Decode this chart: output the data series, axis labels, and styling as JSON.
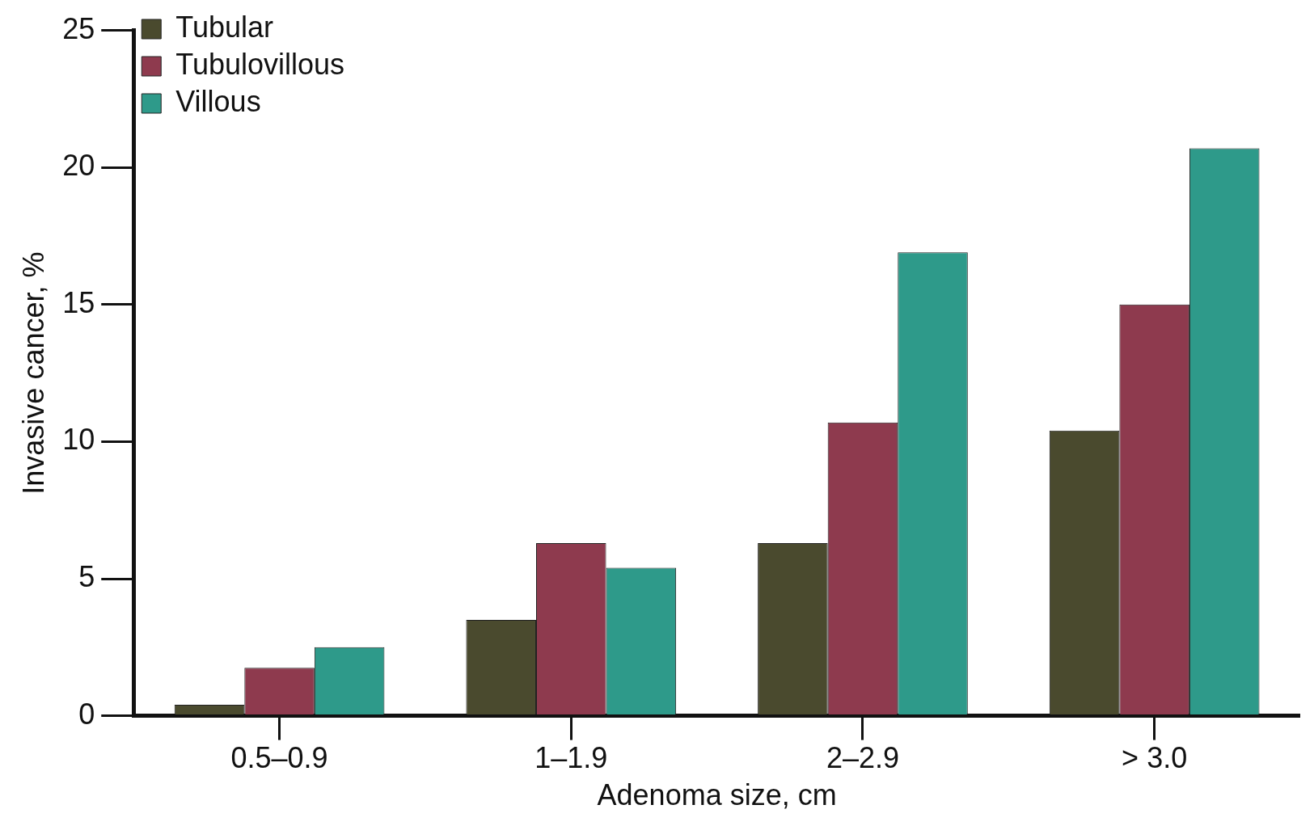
{
  "chart_data": {
    "type": "bar",
    "xlabel": "Adenoma size, cm",
    "ylabel": "Invasive cancer, %",
    "categories": [
      "0.5–0.9",
      "1–1.9",
      "2–2.9",
      "> 3.0"
    ],
    "series": [
      {
        "name": "Tubular",
        "color": "#4a4a2e",
        "values": [
          0.4,
          3.5,
          6.3,
          10.4
        ]
      },
      {
        "name": "Tubulovillous",
        "color": "#8e3a4e",
        "values": [
          1.75,
          6.3,
          10.7,
          15.0
        ]
      },
      {
        "name": "Villous",
        "color": "#2e9a8a",
        "values": [
          2.5,
          5.4,
          16.9,
          20.7
        ]
      }
    ],
    "ylim": [
      0,
      25
    ],
    "yticks": [
      0,
      5,
      10,
      15,
      20,
      25
    ],
    "grid": false,
    "legend": "top left"
  }
}
